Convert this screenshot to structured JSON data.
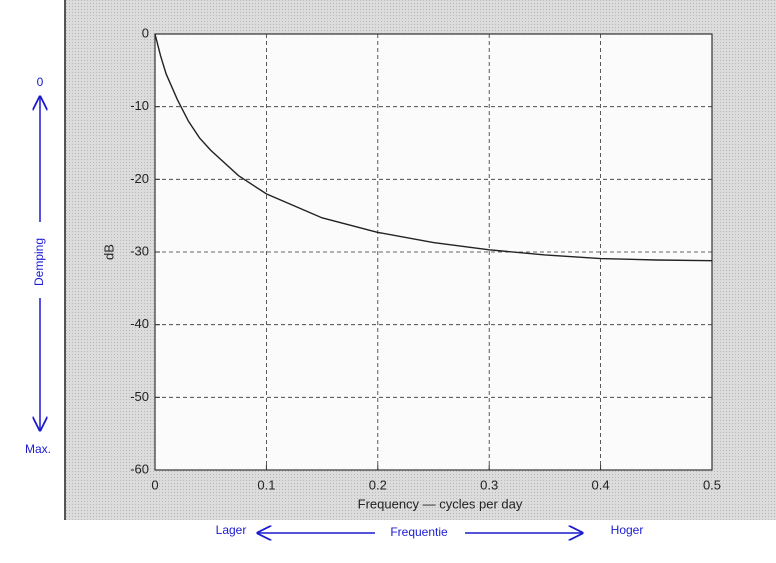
{
  "chart_data": {
    "type": "line",
    "xlabel": "Frequency — cycles per day",
    "ylabel": "dB",
    "x": [
      0,
      0.005,
      0.01,
      0.02,
      0.03,
      0.04,
      0.05,
      0.075,
      0.1,
      0.15,
      0.2,
      0.25,
      0.3,
      0.35,
      0.4,
      0.45,
      0.5
    ],
    "series": [
      {
        "color": "#222222",
        "values": [
          0,
          -3,
          -5.5,
          -9,
          -12,
          -14.3,
          -16,
          -19.5,
          -22,
          -25.3,
          -27.3,
          -28.7,
          -29.7,
          -30.4,
          -30.9,
          -31.1,
          -31.2
        ]
      }
    ],
    "xlim": [
      0,
      0.5
    ],
    "xticks": [
      0,
      0.1,
      0.2,
      0.3,
      0.4,
      0.5
    ],
    "ylim": [
      -60,
      0
    ],
    "yticks": [
      0,
      -10,
      -20,
      -30,
      -40,
      -50,
      -60
    ],
    "grid": true,
    "annotations": [
      "0",
      "Demping",
      "Max.",
      "Lager",
      "Frequentie",
      "Hoger"
    ]
  }
}
